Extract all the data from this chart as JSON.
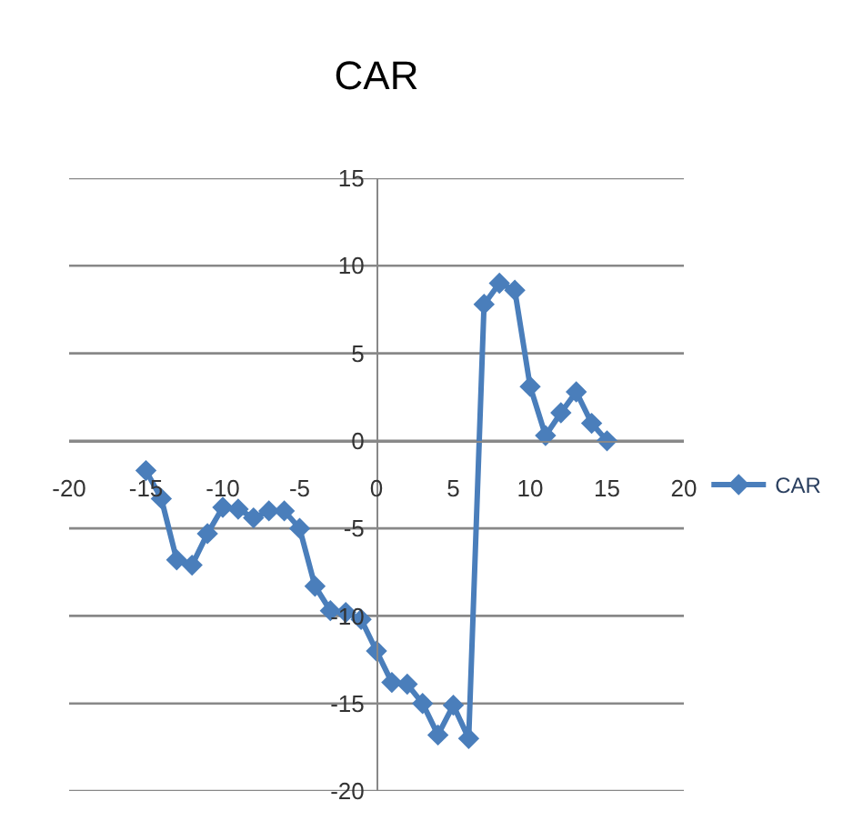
{
  "chart_data": {
    "type": "line",
    "title": "CAR",
    "x": [
      -15,
      -14,
      -13,
      -12,
      -11,
      -10,
      -9,
      -8,
      -7,
      -6,
      -5,
      -4,
      -3,
      -2,
      -1,
      0,
      1,
      2,
      3,
      4,
      5,
      6,
      7,
      8,
      9,
      10,
      11,
      12,
      13,
      14,
      15
    ],
    "series": [
      {
        "name": "CAR",
        "color": "#4a7ebb",
        "values": [
          -1.7,
          -3.3,
          -6.8,
          -7.1,
          -5.3,
          -3.8,
          -3.9,
          -4.4,
          -4.0,
          -4.0,
          -5.0,
          -8.3,
          -9.7,
          -9.8,
          -10.2,
          -12.0,
          -13.8,
          -13.9,
          -15.0,
          -16.8,
          -15.1,
          -17.0,
          7.8,
          9.0,
          8.6,
          3.1,
          0.3,
          1.6,
          2.8,
          1.0,
          0.0
        ]
      }
    ],
    "xlim": [
      -20,
      20
    ],
    "xticks": [
      -20,
      -15,
      -10,
      -5,
      0,
      5,
      10,
      15,
      20
    ],
    "ylim": [
      -20,
      15
    ],
    "yticks": [
      -20,
      -15,
      -10,
      -5,
      0,
      5,
      10,
      15
    ],
    "grid": "y",
    "legend": "right",
    "marker": "diamond",
    "line_style": "solid"
  }
}
